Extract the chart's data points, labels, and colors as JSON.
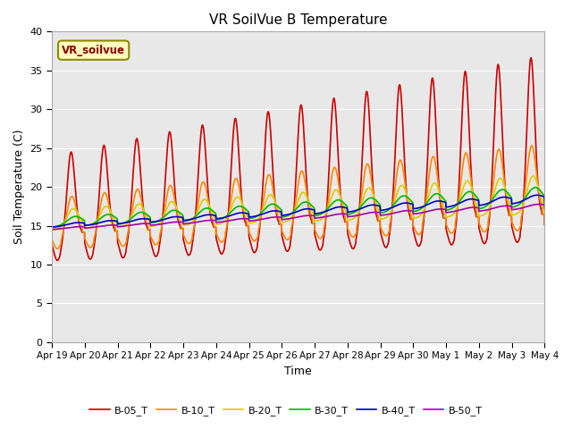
{
  "title": "VR SoilVue B Temperature",
  "xlabel": "Time",
  "ylabel": "Soil Temperature (C)",
  "ylim": [
    0,
    40
  ],
  "annotation": "VR_soilvue",
  "bg_color": "#e8e8e8",
  "fig_bg": "#ffffff",
  "series": {
    "B-05_T": {
      "color": "#cc0000",
      "linewidth": 1.2
    },
    "B-10_T": {
      "color": "#ff8800",
      "linewidth": 1.2
    },
    "B-20_T": {
      "color": "#ddcc00",
      "linewidth": 1.2
    },
    "B-30_T": {
      "color": "#00bb00",
      "linewidth": 1.2
    },
    "B-40_T": {
      "color": "#0000cc",
      "linewidth": 1.2
    },
    "B-50_T": {
      "color": "#aa00aa",
      "linewidth": 1.2
    }
  },
  "yticks": [
    0,
    5,
    10,
    15,
    20,
    25,
    30,
    35,
    40
  ],
  "ytick_labels": [
    "0",
    "5",
    "10",
    "15",
    "20",
    "25",
    "30",
    "35",
    "40"
  ],
  "xtick_labels": [
    "Apr 19",
    "Apr 20",
    "Apr 21",
    "Apr 22",
    "Apr 23",
    "Apr 24",
    "Apr 25",
    "Apr 26",
    "Apr 27",
    "Apr 28",
    "Apr 29",
    "Apr 30",
    "May 1",
    "May 2",
    "May 3",
    "May 4"
  ]
}
